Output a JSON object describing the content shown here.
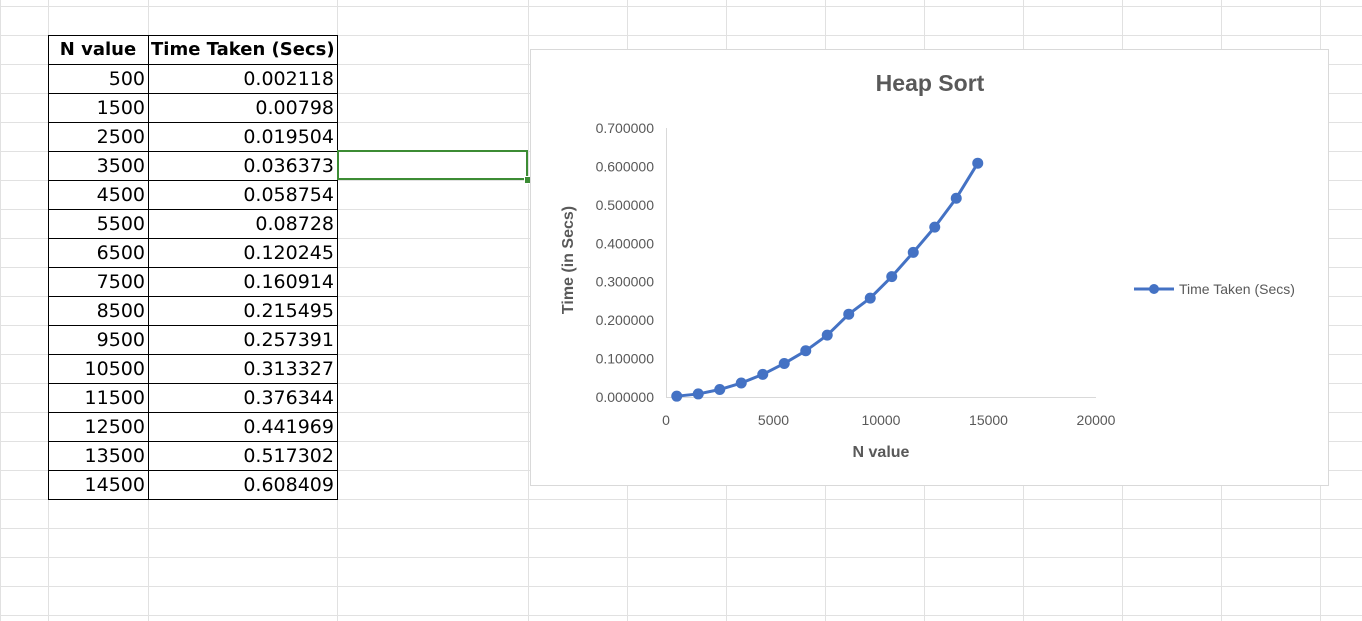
{
  "table": {
    "headers": [
      "N value",
      "Time Taken (Secs)"
    ],
    "rows": [
      [
        "500",
        "0.002118"
      ],
      [
        "1500",
        "0.00798"
      ],
      [
        "2500",
        "0.019504"
      ],
      [
        "3500",
        "0.036373"
      ],
      [
        "4500",
        "0.058754"
      ],
      [
        "5500",
        "0.08728"
      ],
      [
        "6500",
        "0.120245"
      ],
      [
        "7500",
        "0.160914"
      ],
      [
        "8500",
        "0.215495"
      ],
      [
        "9500",
        "0.257391"
      ],
      [
        "10500",
        "0.313327"
      ],
      [
        "11500",
        "0.376344"
      ],
      [
        "12500",
        "0.441969"
      ],
      [
        "13500",
        "0.517302"
      ],
      [
        "14500",
        "0.608409"
      ]
    ]
  },
  "colors": {
    "series": "#4472c4",
    "selection": "#3c8c34",
    "gridline": "#e1e1e1"
  },
  "chart_data": {
    "type": "line",
    "title": "Heap Sort",
    "xlabel": "N value",
    "ylabel": "Time (in Secs)",
    "xlim": [
      0,
      20000
    ],
    "ylim": [
      0,
      0.7
    ],
    "x_ticks": [
      "0",
      "5000",
      "10000",
      "15000",
      "20000"
    ],
    "y_ticks": [
      "0.000000",
      "0.100000",
      "0.200000",
      "0.300000",
      "0.400000",
      "0.500000",
      "0.600000",
      "0.700000"
    ],
    "x_tick_values": [
      0,
      5000,
      10000,
      15000,
      20000
    ],
    "y_tick_values": [
      0,
      0.1,
      0.2,
      0.3,
      0.4,
      0.5,
      0.6,
      0.7
    ],
    "legend_position": "right",
    "grid": false,
    "series": [
      {
        "name": "Time Taken (Secs)",
        "x": [
          500,
          1500,
          2500,
          3500,
          4500,
          5500,
          6500,
          7500,
          8500,
          9500,
          10500,
          11500,
          12500,
          13500,
          14500
        ],
        "y": [
          0.002118,
          0.00798,
          0.019504,
          0.036373,
          0.058754,
          0.08728,
          0.120245,
          0.160914,
          0.215495,
          0.257391,
          0.313327,
          0.376344,
          0.441969,
          0.517302,
          0.608409
        ]
      }
    ]
  }
}
